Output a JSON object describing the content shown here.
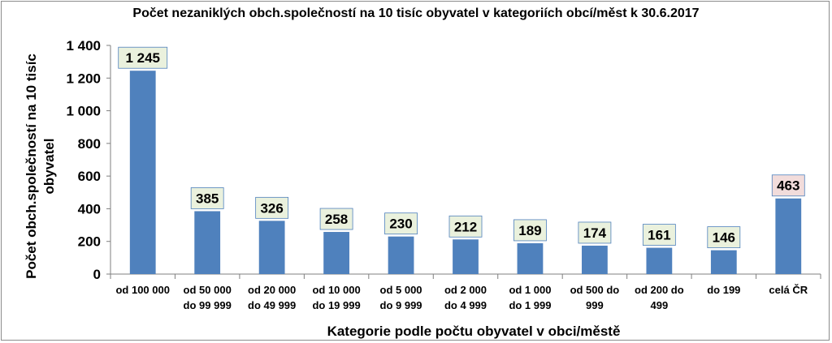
{
  "chart_data": {
    "type": "bar",
    "title": "Počet nezaniklých obch.společností na 10 tisíc obyvatel v kategoriích obcí/měst k 30.6.2017",
    "xlabel": "Kategorie podle počtu obyvatel v obci/městě",
    "ylabel_lines": [
      "Počet obch.společností na 10 tisíc",
      "obyvatel"
    ],
    "ylim": [
      0,
      1400
    ],
    "ytick_labels": [
      "0",
      "200",
      "400",
      "600",
      "800",
      "1 000",
      "1 200",
      "1 400"
    ],
    "ytick_values": [
      0,
      200,
      400,
      600,
      800,
      1000,
      1200,
      1400
    ],
    "categories": [
      [
        "od 100 000"
      ],
      [
        "od 50 000",
        "do 99 999"
      ],
      [
        "od 20 000",
        "do 49 999"
      ],
      [
        "od 10 000",
        "do 19 999"
      ],
      [
        "od 5 000",
        "do 9 999"
      ],
      [
        "od 2 000",
        "do 4 999"
      ],
      [
        "od 1 000",
        "do 1 999"
      ],
      [
        "od 500 do",
        "999"
      ],
      [
        "od 200 do",
        "499"
      ],
      [
        "do 199"
      ],
      [
        "celá ČR"
      ]
    ],
    "values": [
      1245,
      385,
      326,
      258,
      230,
      212,
      189,
      174,
      161,
      146,
      463
    ],
    "value_labels": [
      "1 245",
      "385",
      "326",
      "258",
      "230",
      "212",
      "189",
      "174",
      "161",
      "146",
      "463"
    ],
    "bar_color": "#4f81bd",
    "label_fill": "#eaf1dd",
    "highlight_label_fill": "#f2dcdb",
    "highlight_index": 10,
    "grid": false
  }
}
